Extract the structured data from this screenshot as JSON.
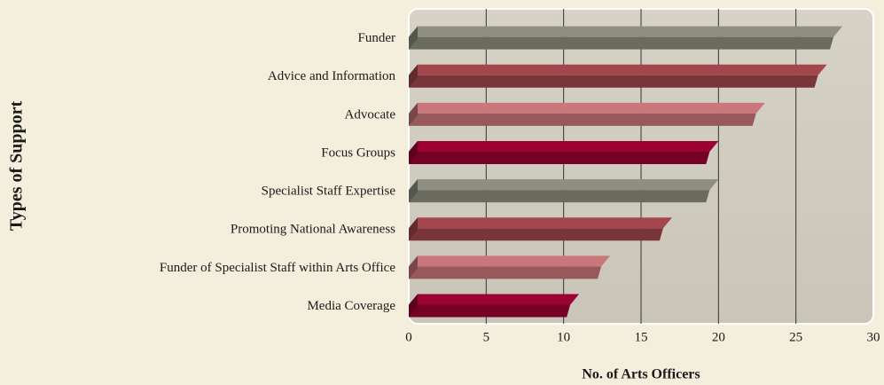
{
  "chart_data": {
    "type": "bar",
    "orientation": "horizontal",
    "y_axis_label": "Types of  Support",
    "x_axis_label": "No. of Arts Officers",
    "categories": [
      "Funder",
      "Advice and Information",
      "Advocate",
      "Focus Groups",
      "Specialist Staff Expertise",
      "Promoting National Awareness",
      "Funder of Specialist Staff within Arts Office",
      "Media Coverage"
    ],
    "values": [
      28,
      27,
      23,
      20,
      20,
      17,
      13,
      11
    ],
    "colors": [
      "#8e8f7f",
      "#a3474d",
      "#c9777b",
      "#9c0233",
      "#8e8f7f",
      "#a3474d",
      "#c9777b",
      "#9c0233"
    ],
    "xlim": [
      0,
      30
    ],
    "xticks": [
      0,
      5,
      10,
      15,
      20,
      25,
      30
    ],
    "grid": true
  }
}
